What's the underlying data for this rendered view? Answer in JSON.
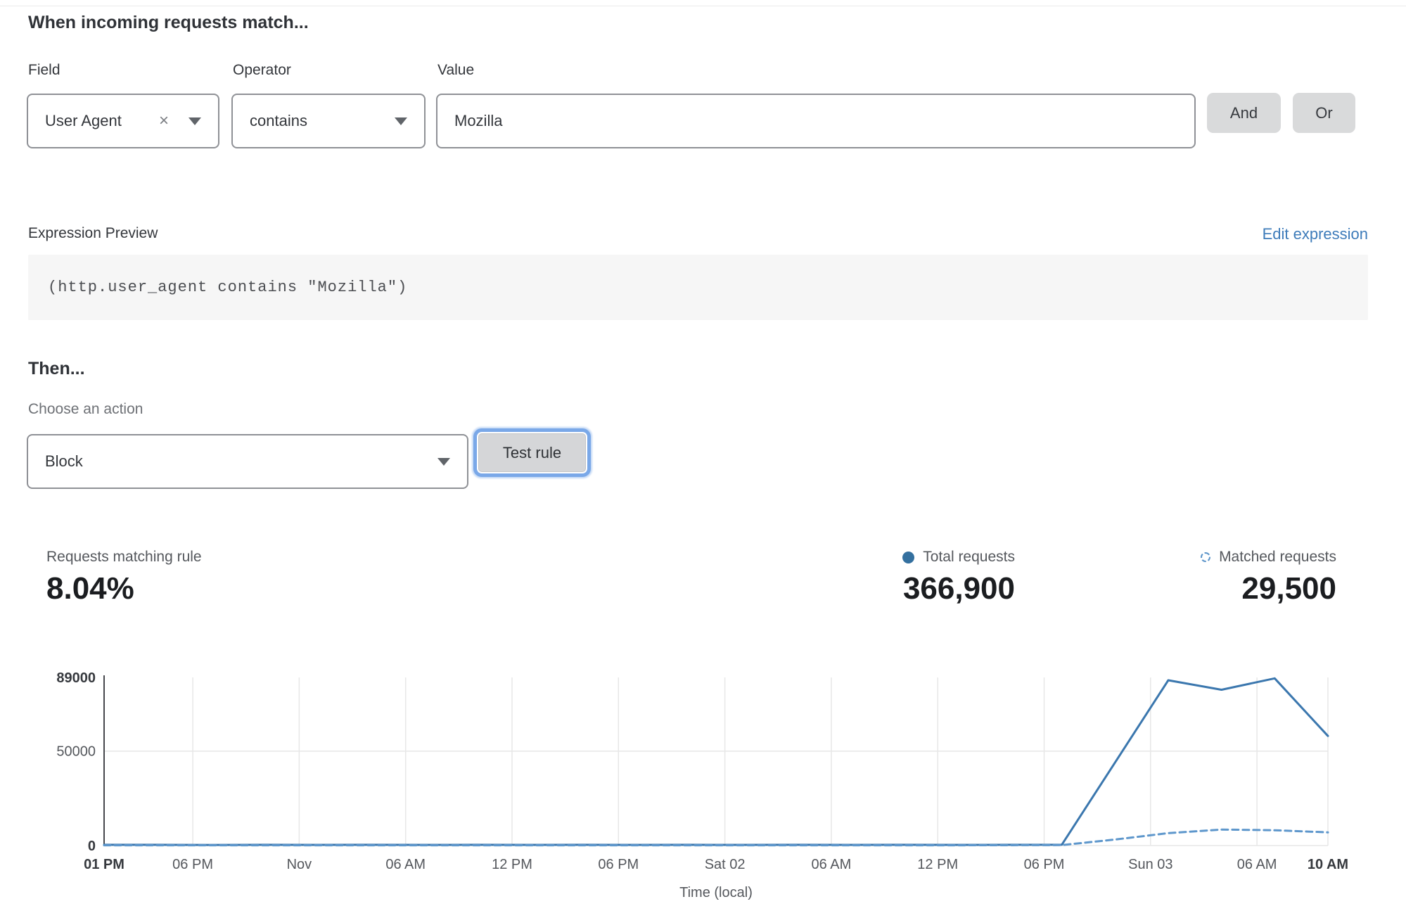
{
  "header": {
    "title": "When incoming requests match..."
  },
  "condition": {
    "field_label": "Field",
    "operator_label": "Operator",
    "value_label": "Value",
    "field_value": "User Agent",
    "operator_value": "contains",
    "value_text": "Mozilla",
    "and_label": "And",
    "or_label": "Or"
  },
  "icons": {
    "clear": "×"
  },
  "expression": {
    "label": "Expression Preview",
    "edit_link": "Edit expression",
    "code": "(http.user_agent contains \"Mozilla\")"
  },
  "action": {
    "title": "Then...",
    "choose_label": "Choose an action",
    "selected_action": "Block",
    "test_button": "Test rule"
  },
  "stats": {
    "matching_label": "Requests matching rule",
    "matching_value": "8.04%",
    "total_label": "Total requests",
    "total_value": "366,900",
    "matched_label": "Matched requests",
    "matched_value": "29,500"
  },
  "colors": {
    "link_blue": "#3e7cba",
    "total_line": "#3b77ae",
    "matched_line": "#5e97cc",
    "legend_dot": "#34709f",
    "focus_ring": "#7aa8e8",
    "grid": "#e7e7e7",
    "axis": "#46484c"
  },
  "chart_data": {
    "type": "line",
    "title": "",
    "xlabel": "Time (local)",
    "ylabel": "",
    "ylim": [
      0,
      89000
    ],
    "xlim_hours": [
      0,
      69
    ],
    "grid": true,
    "legend_position": "top-right",
    "y_ticks": [
      {
        "value": 89000,
        "label": "89000",
        "bold": true
      },
      {
        "value": 50000,
        "label": "50000",
        "bold": false
      },
      {
        "value": 0,
        "label": "0",
        "bold": true
      }
    ],
    "x_ticks": [
      {
        "hour": 0,
        "label": "01 PM",
        "bold": true
      },
      {
        "hour": 5,
        "label": "06 PM",
        "bold": false
      },
      {
        "hour": 11,
        "label": "Nov",
        "bold": false
      },
      {
        "hour": 17,
        "label": "06 AM",
        "bold": false
      },
      {
        "hour": 23,
        "label": "12 PM",
        "bold": false
      },
      {
        "hour": 29,
        "label": "06 PM",
        "bold": false
      },
      {
        "hour": 35,
        "label": "Sat 02",
        "bold": false
      },
      {
        "hour": 41,
        "label": "06 AM",
        "bold": false
      },
      {
        "hour": 47,
        "label": "12 PM",
        "bold": false
      },
      {
        "hour": 53,
        "label": "06 PM",
        "bold": false
      },
      {
        "hour": 59,
        "label": "Sun 03",
        "bold": false
      },
      {
        "hour": 65,
        "label": "06 AM",
        "bold": false
      },
      {
        "hour": 69,
        "label": "10 AM",
        "bold": true
      }
    ],
    "series": [
      {
        "name": "Total requests",
        "style": "solid",
        "color": "#3b77ae",
        "points": [
          [
            0,
            400
          ],
          [
            3,
            400
          ],
          [
            6,
            350
          ],
          [
            9,
            400
          ],
          [
            12,
            380
          ],
          [
            15,
            400
          ],
          [
            18,
            360
          ],
          [
            21,
            400
          ],
          [
            24,
            380
          ],
          [
            27,
            400
          ],
          [
            30,
            360
          ],
          [
            33,
            400
          ],
          [
            36,
            380
          ],
          [
            39,
            400
          ],
          [
            42,
            360
          ],
          [
            45,
            400
          ],
          [
            48,
            380
          ],
          [
            51,
            400
          ],
          [
            54,
            500
          ],
          [
            57,
            44000
          ],
          [
            60,
            87500
          ],
          [
            63,
            82500
          ],
          [
            66,
            88500
          ],
          [
            69,
            58000
          ]
        ]
      },
      {
        "name": "Matched requests",
        "style": "dashed",
        "color": "#5e97cc",
        "points": [
          [
            0,
            150
          ],
          [
            6,
            150
          ],
          [
            12,
            150
          ],
          [
            18,
            150
          ],
          [
            24,
            150
          ],
          [
            30,
            150
          ],
          [
            36,
            150
          ],
          [
            42,
            150
          ],
          [
            48,
            150
          ],
          [
            54,
            250
          ],
          [
            57,
            3200
          ],
          [
            60,
            6600
          ],
          [
            63,
            8500
          ],
          [
            66,
            8100
          ],
          [
            69,
            7000
          ]
        ]
      }
    ]
  }
}
